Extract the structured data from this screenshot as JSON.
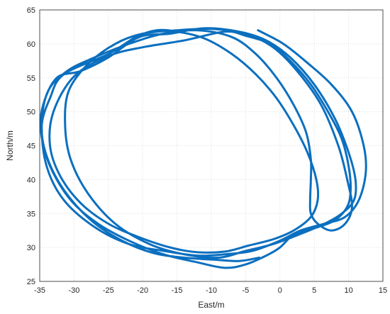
{
  "chart_data": {
    "type": "line",
    "title": "",
    "xlabel": "East/m",
    "ylabel": "North/m",
    "xlim": [
      -35,
      15
    ],
    "ylim": [
      25,
      65
    ],
    "xticks": [
      -35,
      -30,
      -25,
      -20,
      -15,
      -10,
      -5,
      0,
      5,
      10,
      15
    ],
    "yticks": [
      25,
      30,
      35,
      40,
      45,
      50,
      55,
      60,
      65
    ],
    "grid": true,
    "line_color": "#0b6fbf",
    "series": [
      {
        "values": [
          [
            -3.2,
            62.0
          ],
          [
            0.5,
            60.0
          ],
          [
            4.0,
            57.2
          ],
          [
            7.5,
            54.0
          ],
          [
            10.5,
            50.0
          ],
          [
            12.2,
            45.0
          ],
          [
            12.5,
            41.0
          ],
          [
            11.5,
            37.0
          ],
          [
            9.5,
            34.5
          ],
          [
            6.5,
            33.5
          ],
          [
            3.0,
            32.5
          ],
          [
            0.0,
            31.0
          ],
          [
            -4.0,
            29.5
          ],
          [
            -8.0,
            29.0
          ],
          [
            -12.0,
            28.8
          ],
          [
            -17.0,
            29.5
          ],
          [
            -22.0,
            30.5
          ],
          [
            -27.0,
            33.0
          ],
          [
            -31.5,
            37.0
          ],
          [
            -34.0,
            42.0
          ],
          [
            -34.7,
            48.0
          ],
          [
            -33.8,
            53.0
          ],
          [
            -31.0,
            56.0
          ],
          [
            -27.0,
            58.0
          ],
          [
            -22.0,
            60.0
          ],
          [
            -17.0,
            61.5
          ],
          [
            -12.0,
            62.0
          ],
          [
            -7.0,
            61.0
          ],
          [
            -3.5,
            58.5
          ],
          [
            -0.5,
            55.0
          ],
          [
            2.0,
            51.0
          ],
          [
            3.8,
            47.0
          ],
          [
            4.5,
            43.0
          ],
          [
            4.5,
            40.0
          ],
          [
            4.4,
            37.0
          ],
          [
            4.5,
            35.0
          ],
          [
            5.5,
            33.5
          ],
          [
            7.5,
            32.5
          ],
          [
            9.5,
            33.5
          ],
          [
            10.5,
            36.0
          ],
          [
            9.8,
            40.0
          ],
          [
            8.5,
            45.0
          ],
          [
            6.0,
            51.0
          ],
          [
            2.5,
            56.0
          ],
          [
            -1.0,
            59.5
          ],
          [
            -5.0,
            61.5
          ],
          [
            -10.0,
            62.2
          ],
          [
            -15.0,
            62.0
          ],
          [
            -20.0,
            61.5
          ],
          [
            -24.0,
            60.0
          ],
          [
            -28.0,
            57.0
          ],
          [
            -30.8,
            53.0
          ],
          [
            -31.3,
            48.0
          ],
          [
            -30.5,
            43.0
          ],
          [
            -28.0,
            38.0
          ],
          [
            -24.0,
            33.5
          ],
          [
            -19.0,
            30.5
          ],
          [
            -14.0,
            29.0
          ],
          [
            -9.0,
            28.5
          ],
          [
            -5.0,
            29.5
          ],
          [
            -1.0,
            30.5
          ],
          [
            3.0,
            32.0
          ],
          [
            6.5,
            33.5
          ],
          [
            9.0,
            35.0
          ],
          [
            10.8,
            37.0
          ],
          [
            11.0,
            40.0
          ],
          [
            10.0,
            44.0
          ],
          [
            8.0,
            49.0
          ],
          [
            5.0,
            54.0
          ],
          [
            1.5,
            58.0
          ],
          [
            -2.0,
            60.5
          ],
          [
            -6.0,
            61.8
          ],
          [
            -11.0,
            62.3
          ],
          [
            -16.0,
            61.5
          ],
          [
            -20.5,
            61.0
          ],
          [
            -25.0,
            58.0
          ],
          [
            -29.0,
            56.0
          ],
          [
            -32.5,
            55.0
          ],
          [
            -34.5,
            51.0
          ],
          [
            -34.8,
            47.0
          ],
          [
            -33.5,
            42.0
          ],
          [
            -30.5,
            37.0
          ],
          [
            -26.5,
            33.5
          ],
          [
            -22.0,
            31.0
          ],
          [
            -17.0,
            29.0
          ],
          [
            -12.0,
            27.8
          ],
          [
            -8.0,
            27.0
          ],
          [
            -5.0,
            27.5
          ],
          [
            -2.0,
            28.8
          ],
          [
            0.0,
            30.0
          ],
          [
            1.5,
            31.5
          ],
          [
            3.0,
            32.3
          ],
          [
            5.5,
            33.0
          ],
          [
            8.0,
            34.0
          ],
          [
            9.8,
            36.0
          ],
          [
            10.3,
            38.5
          ],
          [
            10.0,
            42.0
          ],
          [
            9.0,
            46.0
          ],
          [
            7.0,
            50.0
          ],
          [
            4.5,
            54.0
          ],
          [
            1.5,
            57.5
          ],
          [
            -1.5,
            60.0
          ],
          [
            -5.0,
            61.2
          ],
          [
            -8.0,
            61.8
          ],
          [
            -14.0,
            60.5
          ],
          [
            -20.0,
            59.5
          ],
          [
            -25.0,
            58.2
          ],
          [
            -30.0,
            55.2
          ],
          [
            -33.0,
            50.0
          ],
          [
            -33.5,
            45.0
          ],
          [
            -32.0,
            40.5
          ],
          [
            -29.0,
            36.5
          ],
          [
            -25.0,
            33.5
          ],
          [
            -20.5,
            31.5
          ],
          [
            -16.0,
            30.0
          ],
          [
            -12.0,
            29.3
          ],
          [
            -8.0,
            29.4
          ],
          [
            -4.5,
            30.3
          ],
          [
            -1.0,
            31.2
          ],
          [
            2.0,
            32.5
          ],
          [
            4.5,
            34.5
          ],
          [
            5.5,
            37.0
          ],
          [
            5.3,
            40.0
          ],
          [
            4.0,
            44.0
          ],
          [
            2.0,
            48.0
          ],
          [
            -0.5,
            52.0
          ],
          [
            -3.5,
            55.5
          ],
          [
            -7.0,
            58.5
          ],
          [
            -11.0,
            60.8
          ],
          [
            -15.0,
            61.8
          ],
          [
            -18.0,
            62.0
          ],
          [
            -21.0,
            61.0
          ],
          [
            -25.0,
            58.5
          ],
          [
            -31.5,
            55.5
          ],
          [
            -33.5,
            52.0
          ],
          [
            -34.7,
            48.0
          ],
          [
            -34.0,
            43.5
          ],
          [
            -31.5,
            38.5
          ],
          [
            -27.5,
            34.0
          ],
          [
            -23.0,
            31.0
          ],
          [
            -18.5,
            29.2
          ],
          [
            -14.0,
            28.5
          ],
          [
            -9.5,
            28.2
          ],
          [
            -6.0,
            28.0
          ],
          [
            -3.0,
            28.5
          ]
        ]
      }
    ]
  }
}
